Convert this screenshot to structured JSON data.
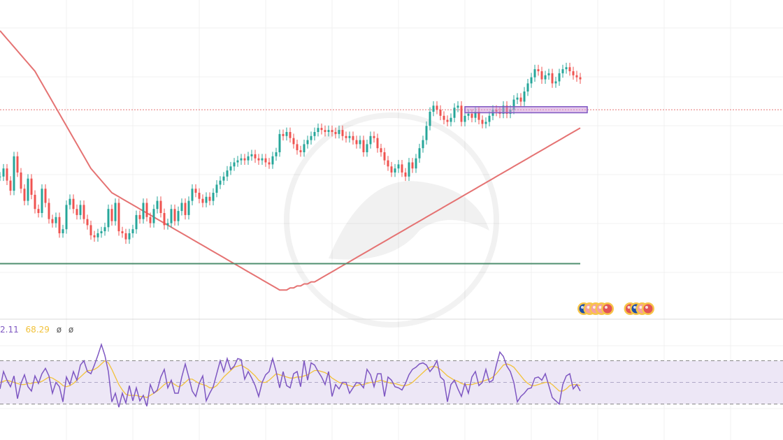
{
  "colors": {
    "up": "#26a69a",
    "down": "#ef5350",
    "ma_short": "#e57373",
    "ma_long": "#4f8f6f",
    "rsi": "#7e57c2",
    "rsi_ma": "#f2c23a",
    "band": "#ede7f6",
    "level_line": "#e57373",
    "zone_fill": "#ce93d8",
    "zone_border": "#7e57c2",
    "grid": "#f0f0f0",
    "separator": "#d8d8d8"
  },
  "rsi_legend": {
    "value1": "2.11",
    "value2": "68.29",
    "value3": "ø",
    "value4": "ø"
  },
  "event_icons": [
    {
      "name": "au-flag-icon",
      "color": "#1e4fa8"
    },
    {
      "name": "event-icon",
      "color": "#f4a0a0"
    },
    {
      "name": "event-icon",
      "color": "#f4a0a0"
    },
    {
      "name": "event-icon",
      "color": "#f4a0a0"
    },
    {
      "name": "us-flag-icon",
      "color": "#e25555"
    },
    {
      "name": "us-flag-icon",
      "color": "#e25555"
    },
    {
      "name": "event-icon",
      "color": "#1e4fa8"
    },
    {
      "name": "event-icon",
      "color": "#f4a0a0"
    },
    {
      "name": "event-icon",
      "color": "#e25555"
    }
  ],
  "chart_data": [
    {
      "type": "line",
      "title": "",
      "xlabel": "",
      "ylabel": "",
      "grid": true,
      "x": [
        0,
        1,
        2,
        3,
        4,
        5,
        6,
        7,
        8,
        9,
        10,
        11,
        12,
        13,
        14,
        15,
        16,
        17,
        18,
        19,
        20,
        21,
        22,
        23,
        24,
        25,
        26,
        27,
        28,
        29,
        30,
        31,
        32,
        33,
        34,
        35,
        36,
        37,
        38,
        39,
        40,
        41,
        42,
        43,
        44,
        45,
        46,
        47,
        48,
        49,
        50,
        51,
        52,
        53,
        54,
        55,
        56,
        57,
        58,
        59,
        60,
        61,
        62,
        63,
        64,
        65,
        66,
        67,
        68,
        69,
        70,
        71,
        72,
        73,
        74,
        75,
        76,
        77,
        78,
        79,
        80,
        81,
        82,
        83,
        84,
        85,
        86,
        87,
        88,
        89,
        90,
        91,
        92,
        93,
        94,
        95,
        96,
        97,
        98,
        99,
        100,
        101,
        102,
        103,
        104,
        105,
        106,
        107,
        108,
        109,
        110,
        111,
        112,
        113,
        114,
        115,
        116,
        117,
        118,
        119,
        120,
        121,
        122,
        123,
        124,
        125,
        126,
        127,
        128,
        129,
        130,
        131,
        132,
        133,
        134,
        135,
        136,
        137,
        138,
        139,
        140,
        141,
        142,
        143,
        144,
        145,
        146,
        147,
        148,
        149,
        150,
        151,
        152,
        153,
        154,
        155,
        156,
        157,
        158,
        159,
        160,
        161,
        162,
        163,
        164,
        165,
        166
      ],
      "series": [
        {
          "role": "price",
          "values": [
            68,
            72,
            66,
            61,
            78,
            70,
            62,
            56,
            67,
            59,
            52,
            50,
            62,
            55,
            47,
            45,
            48,
            40,
            42,
            54,
            57,
            52,
            49,
            54,
            47,
            44,
            39,
            38,
            40,
            41,
            43,
            52,
            46,
            55,
            41,
            40,
            37,
            40,
            42,
            49,
            47,
            55,
            48,
            45,
            52,
            56,
            50,
            44,
            45,
            52,
            46,
            51,
            55,
            49,
            56,
            62,
            60,
            57,
            55,
            58,
            56,
            60,
            64,
            66,
            68,
            71,
            73,
            75,
            76,
            77,
            76,
            78,
            79,
            77,
            76,
            77,
            75,
            74,
            78,
            80,
            89,
            88,
            90,
            87,
            84,
            81,
            80,
            84,
            86,
            88,
            90,
            92,
            91,
            90,
            91,
            90,
            89,
            91,
            88,
            87,
            88,
            86,
            84,
            86,
            80,
            84,
            88,
            87,
            82,
            80,
            76,
            73,
            70,
            72,
            74,
            70,
            68,
            75,
            72,
            77,
            82,
            86,
            93,
            100,
            103,
            101,
            98,
            96,
            95,
            97,
            102,
            103,
            95,
            98,
            99,
            97,
            100,
            96,
            94,
            95,
            98,
            101,
            100,
            99,
            103,
            99,
            101,
            106,
            107,
            105,
            110,
            114,
            117,
            121,
            120,
            116,
            118,
            119,
            114,
            115,
            119,
            121,
            122,
            120,
            118,
            117,
            116
          ],
          "legend": false
        },
        {
          "role": "moving-average-fast",
          "values": [
            140,
            138,
            136,
            134,
            132,
            130,
            128,
            126,
            124,
            122,
            120,
            117,
            114,
            111,
            108,
            105,
            102,
            99,
            96,
            93,
            90,
            87,
            84,
            81,
            78,
            75,
            72,
            70,
            68,
            66,
            64,
            62,
            60,
            59,
            58,
            57,
            56,
            55,
            54,
            53,
            52,
            51,
            50,
            49,
            48,
            47,
            46,
            45,
            44,
            43,
            42,
            41,
            40,
            39,
            38,
            37,
            36,
            35,
            34,
            33,
            32,
            31,
            30,
            29,
            28,
            27,
            26,
            25,
            24,
            23,
            22,
            21,
            20,
            19,
            18,
            17,
            16,
            15,
            14,
            13,
            12,
            12,
            12,
            13,
            13,
            14,
            14,
            15,
            15,
            16,
            16,
            17,
            18,
            19,
            20,
            21,
            22,
            23,
            24,
            25,
            26,
            27,
            28,
            29,
            30,
            31,
            32,
            33,
            34,
            35,
            36,
            37,
            38,
            39,
            40,
            41,
            42,
            43,
            44,
            45,
            46,
            47,
            48,
            49,
            50,
            51,
            52,
            53,
            54,
            55,
            56,
            57,
            58,
            59,
            60,
            61,
            62,
            63,
            64,
            65,
            66,
            67,
            68,
            69,
            70,
            71,
            72,
            73,
            74,
            75,
            76,
            77,
            78,
            79,
            80,
            81,
            82,
            83,
            84,
            85,
            86,
            87,
            88,
            89,
            90,
            91,
            92
          ],
          "legend": false
        },
        {
          "role": "moving-average-slow",
          "values": [
            25,
            25,
            25,
            25,
            25,
            25,
            25,
            25,
            25,
            25,
            25,
            25,
            25,
            25,
            25,
            25,
            25,
            25,
            25,
            25,
            25,
            25,
            25,
            25,
            25,
            25,
            25,
            25,
            25,
            25,
            25,
            25,
            25,
            25,
            25,
            25,
            25,
            25,
            25,
            25,
            25,
            25,
            25,
            25,
            25,
            25,
            25,
            25,
            25,
            25,
            25,
            25,
            25,
            25,
            25,
            25,
            25,
            25,
            25,
            25,
            25,
            25,
            25,
            25,
            25,
            25,
            25,
            25,
            25,
            25,
            25,
            25,
            25,
            25,
            25,
            25,
            25,
            25,
            25,
            25,
            25,
            25,
            25,
            25,
            25,
            25,
            25,
            25,
            25,
            25,
            25,
            25,
            25,
            25,
            25,
            25,
            25,
            25,
            25,
            25,
            25,
            25,
            25,
            25,
            25,
            25,
            25,
            25,
            25,
            25,
            25,
            25,
            25,
            25,
            25,
            25,
            25,
            25,
            25,
            25,
            25,
            25,
            25,
            25,
            25,
            25,
            25,
            25,
            25,
            25,
            25,
            25,
            25,
            25,
            25,
            25,
            25,
            25,
            25,
            25,
            25,
            25,
            25,
            25,
            25,
            25,
            25,
            25,
            25,
            25,
            25,
            25,
            25,
            25,
            25,
            25,
            25,
            25,
            25,
            25,
            25,
            25,
            25,
            25,
            25,
            25,
            25
          ],
          "legend": false
        }
      ],
      "reference_level": 101,
      "zone": {
        "from_x": 133,
        "to_x": 168,
        "low": 99.5,
        "high": 102.5
      }
    },
    {
      "type": "line",
      "title": "",
      "xlabel": "",
      "ylabel": "",
      "ylim": [
        0,
        100
      ],
      "grid": true,
      "band": [
        30,
        70
      ],
      "midline": 50,
      "x": [
        0,
        1,
        2,
        3,
        4,
        5,
        6,
        7,
        8,
        9,
        10,
        11,
        12,
        13,
        14,
        15,
        16,
        17,
        18,
        19,
        20,
        21,
        22,
        23,
        24,
        25,
        26,
        27,
        28,
        29,
        30,
        31,
        32,
        33,
        34,
        35,
        36,
        37,
        38,
        39,
        40,
        41,
        42,
        43,
        44,
        45,
        46,
        47,
        48,
        49,
        50,
        51,
        52,
        53,
        54,
        55,
        56,
        57,
        58,
        59,
        60,
        61,
        62,
        63,
        64,
        65,
        66,
        67,
        68,
        69,
        70,
        71,
        72,
        73,
        74,
        75,
        76,
        77,
        78,
        79,
        80,
        81,
        82,
        83,
        84,
        85,
        86,
        87,
        88,
        89,
        90,
        91,
        92,
        93,
        94,
        95,
        96,
        97,
        98,
        99,
        100,
        101,
        102,
        103,
        104,
        105,
        106,
        107,
        108,
        109,
        110,
        111,
        112,
        113,
        114,
        115,
        116,
        117,
        118,
        119,
        120,
        121,
        122,
        123,
        124,
        125,
        126,
        127,
        128,
        129,
        130,
        131,
        132,
        133,
        134,
        135,
        136,
        137,
        138,
        139,
        140,
        141,
        142,
        143,
        144,
        145,
        146,
        147,
        148,
        149,
        150,
        151,
        152,
        153,
        154,
        155,
        156,
        157,
        158,
        159,
        160,
        161,
        162,
        163,
        164,
        165,
        166
      ],
      "series": [
        {
          "role": "rsi",
          "values": [
            44,
            60,
            52,
            46,
            56,
            35,
            49,
            57,
            46,
            42,
            56,
            49,
            58,
            63,
            56,
            40,
            50,
            46,
            32,
            55,
            48,
            60,
            52,
            66,
            70,
            60,
            58,
            66,
            75,
            85,
            75,
            60,
            32,
            40,
            27,
            40,
            31,
            47,
            33,
            45,
            33,
            38,
            28,
            48,
            40,
            43,
            55,
            62,
            45,
            52,
            40,
            40,
            55,
            67,
            55,
            42,
            37,
            49,
            56,
            33,
            40,
            46,
            58,
            70,
            60,
            72,
            62,
            65,
            72,
            71,
            53,
            60,
            54,
            47,
            37,
            50,
            57,
            60,
            72,
            60,
            45,
            60,
            47,
            45,
            58,
            60,
            46,
            70,
            52,
            68,
            66,
            60,
            55,
            48,
            60,
            37,
            48,
            44,
            50,
            50,
            40,
            45,
            50,
            49,
            45,
            62,
            57,
            46,
            58,
            58,
            37,
            55,
            52,
            46,
            45,
            43,
            49,
            57,
            62,
            64,
            67,
            68,
            66,
            60,
            64,
            70,
            55,
            52,
            32,
            48,
            52,
            44,
            37,
            49,
            40,
            55,
            60,
            47,
            50,
            62,
            50,
            52,
            66,
            78,
            74,
            65,
            60,
            50,
            32,
            37,
            40,
            44,
            45,
            54,
            55,
            52,
            58,
            47,
            36,
            33,
            30,
            48,
            56,
            58,
            44,
            48,
            42
          ],
          "legend": false
        },
        {
          "role": "rsi-moving-average",
          "values": [
            50,
            51,
            52,
            51,
            50,
            49,
            48,
            48,
            49,
            49,
            50,
            50,
            51,
            53,
            55,
            54,
            52,
            50,
            47,
            46,
            47,
            49,
            52,
            55,
            58,
            61,
            61,
            62,
            64,
            67,
            70,
            68,
            62,
            55,
            48,
            43,
            39,
            38,
            38,
            38,
            37,
            37,
            36,
            38,
            40,
            42,
            45,
            48,
            50,
            50,
            48,
            46,
            47,
            50,
            53,
            53,
            51,
            49,
            48,
            47,
            45,
            45,
            47,
            51,
            55,
            58,
            61,
            64,
            65,
            66,
            64,
            62,
            59,
            56,
            52,
            50,
            50,
            52,
            55,
            58,
            57,
            56,
            55,
            54,
            54,
            55,
            55,
            56,
            57,
            59,
            61,
            61,
            60,
            59,
            57,
            54,
            52,
            50,
            49,
            48,
            47,
            46,
            47,
            48,
            48,
            49,
            50,
            50,
            51,
            52,
            51,
            50,
            49,
            49,
            48,
            47,
            47,
            48,
            50,
            53,
            56,
            59,
            62,
            64,
            65,
            64,
            62,
            59,
            56,
            54,
            52,
            51,
            49,
            48,
            48,
            48,
            49,
            50,
            51,
            52,
            53,
            55,
            58,
            62,
            66,
            67,
            66,
            64,
            60,
            56,
            52,
            49,
            47,
            47,
            48,
            49,
            50,
            50,
            48,
            45,
            42,
            42,
            44,
            47,
            48,
            48,
            47
          ],
          "legend": false
        }
      ]
    }
  ]
}
